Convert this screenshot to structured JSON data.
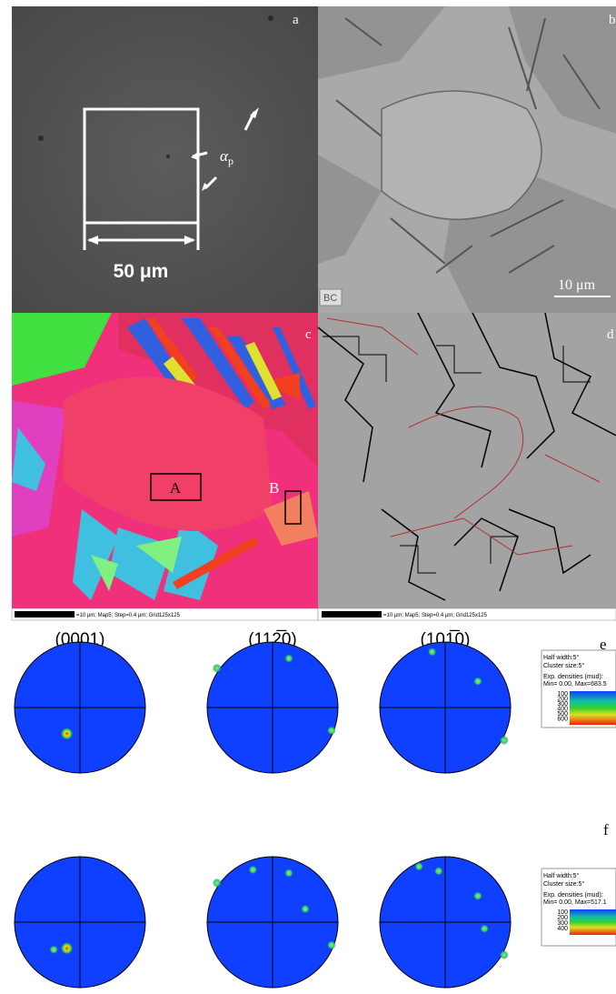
{
  "panels": {
    "a": {
      "label": "a",
      "alpha": "α",
      "alpha_sub": "p",
      "scalebar": "50 μm"
    },
    "b": {
      "label": "b",
      "scalebar": "10 μm",
      "mode": "BC"
    },
    "c": {
      "label": "c",
      "box_a": "A",
      "box_b": "B",
      "scalebar": "=10 μm; Map5; Step=0.4 μm; Grid125x125"
    },
    "d": {
      "label": "d",
      "scalebar": "=10 μm; Map5; Step=0.4 μm; Grid125x125"
    },
    "e": {
      "label": "e",
      "legend": {
        "half_width": "Half width:5°",
        "cluster": "Cluster size:5°",
        "densities": "Exp. densities (mud):",
        "range": "Min= 0.00, Max=683.5",
        "levels": [
          "100",
          "200",
          "300",
          "400",
          "500",
          "600"
        ]
      }
    },
    "f": {
      "label": "f",
      "legend": {
        "half_width": "Half width:5°",
        "cluster": "Cluster size:5°",
        "densities": "Exp. densities (mud):",
        "range": "Min= 0.00, Max=517.1",
        "levels": [
          "100",
          "200",
          "300",
          "400"
        ]
      }
    }
  },
  "pole_titles": [
    "(0001)",
    "(112̅0)",
    "(101̅0)"
  ]
}
